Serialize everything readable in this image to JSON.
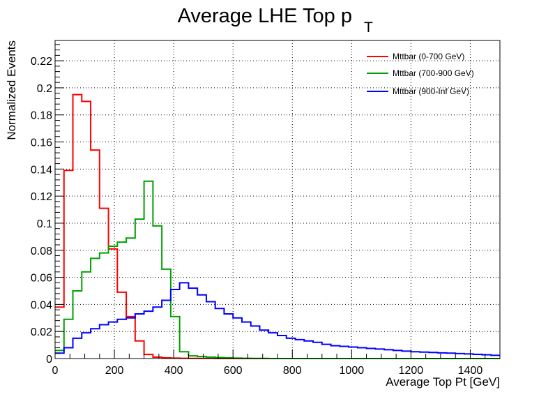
{
  "chart_data": {
    "type": "line",
    "title": "Average LHE Top p",
    "title_subscript": "T",
    "xlabel": "Average Top Pt [GeV]",
    "ylabel": "Normalized Events",
    "xlim": [
      0,
      1500
    ],
    "ylim": [
      0,
      0.235
    ],
    "grid": true,
    "legend_position": "top-right",
    "bin_width": 30,
    "x_ticks": [
      0,
      200,
      400,
      600,
      800,
      1000,
      1200,
      1400
    ],
    "x_tick_labels": [
      "0",
      "200",
      "400",
      "600",
      "800",
      "1000",
      "1200",
      "1400"
    ],
    "y_ticks": [
      0,
      0.02,
      0.04,
      0.06,
      0.08,
      0.1,
      0.12,
      0.14,
      0.16,
      0.18,
      0.2,
      0.22
    ],
    "y_tick_labels": [
      "0",
      "0.02",
      "0.04",
      "0.06",
      "0.08",
      "0.1",
      "0.12",
      "0.14",
      "0.16",
      "0.18",
      "0.2",
      "0.22"
    ],
    "series": [
      {
        "name": "Mttbar (0-700 GeV)",
        "color": "#ff0000",
        "values": [
          0.038,
          0.139,
          0.195,
          0.19,
          0.154,
          0.111,
          0.081,
          0.049,
          0.031,
          0.013,
          0.003,
          0.001,
          0.0005,
          0.0003,
          0.0002,
          0.0001,
          0.0001,
          0.0001,
          0,
          0,
          0,
          0,
          0,
          0,
          0,
          0,
          0,
          0,
          0,
          0,
          0,
          0,
          0,
          0,
          0,
          0,
          0,
          0,
          0,
          0,
          0,
          0,
          0,
          0,
          0,
          0,
          0,
          0,
          0,
          0
        ]
      },
      {
        "name": "Mttbar (700-900 GeV)",
        "color": "#00a000",
        "values": [
          0.006,
          0.029,
          0.05,
          0.064,
          0.074,
          0.078,
          0.083,
          0.086,
          0.089,
          0.103,
          0.131,
          0.098,
          0.066,
          0.031,
          0.005,
          0.002,
          0.0015,
          0.001,
          0.0008,
          0.0005,
          0.0003,
          0.0002,
          0.0001,
          0.0001,
          0,
          0,
          0,
          0,
          0,
          0,
          0,
          0,
          0,
          0,
          0,
          0,
          0,
          0,
          0,
          0,
          0,
          0,
          0,
          0,
          0,
          0,
          0,
          0,
          0,
          0
        ]
      },
      {
        "name": "Mttbar (900-Inf GeV)",
        "color": "#0000ff",
        "values": [
          0.004,
          0.008,
          0.015,
          0.019,
          0.022,
          0.025,
          0.027,
          0.029,
          0.03,
          0.033,
          0.035,
          0.038,
          0.043,
          0.051,
          0.056,
          0.052,
          0.047,
          0.042,
          0.037,
          0.033,
          0.03,
          0.027,
          0.024,
          0.021,
          0.019,
          0.017,
          0.015,
          0.014,
          0.013,
          0.012,
          0.0105,
          0.0095,
          0.009,
          0.0085,
          0.008,
          0.0075,
          0.007,
          0.0065,
          0.006,
          0.0055,
          0.005,
          0.0048,
          0.0045,
          0.0042,
          0.004,
          0.0037,
          0.0034,
          0.0031,
          0.0028,
          0.0024
        ]
      }
    ]
  }
}
